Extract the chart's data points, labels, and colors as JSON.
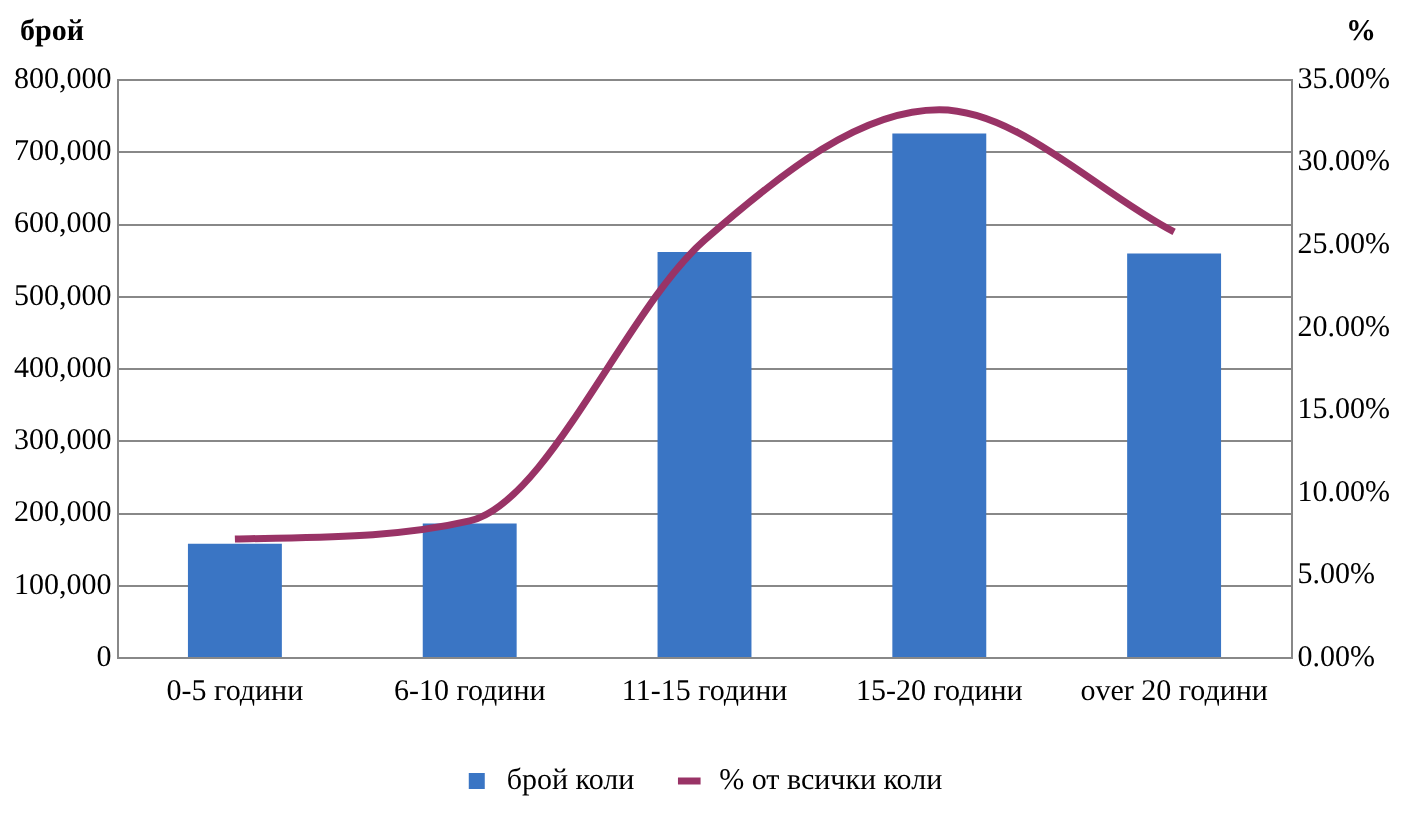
{
  "chart_data": {
    "type": "bar",
    "ylabel": "брой",
    "y2label": "%",
    "categories": [
      "0-5 години",
      "6-10 години",
      "11-15 години",
      "15-20 години",
      "over 20 години"
    ],
    "series": [
      {
        "name": "брой коли",
        "color": "#3a75c4",
        "values": [
          158000,
          186000,
          562000,
          726000,
          560000
        ]
      },
      {
        "name": "% от всички коли",
        "type": "line",
        "axis": "y2",
        "color": "#993366",
        "values": [
          7.2,
          8.3,
          25.3,
          33.2,
          25.8
        ]
      }
    ],
    "ylim": [
      0,
      800000
    ],
    "yticks": [
      0,
      {
        "value": 100000,
        "label": "100,000"
      },
      {
        "value": 200000,
        "label": "200,000"
      },
      {
        "value": 300000,
        "label": "300,000"
      },
      {
        "value": 400000,
        "label": "400,000"
      },
      {
        "value": 500000,
        "label": "500,000"
      },
      {
        "value": 600000,
        "label": "600,000"
      },
      {
        "value": 700000,
        "label": "700,000"
      },
      {
        "value": 800000,
        "label": "800,000"
      }
    ],
    "y2lim": [
      0,
      35
    ],
    "y2ticks": [
      {
        "value": 0,
        "label": "0.00%"
      },
      {
        "value": 5,
        "label": "5.00%"
      },
      {
        "value": 10,
        "label": "10.00%"
      },
      {
        "value": 15,
        "label": "15.00%"
      },
      {
        "value": 20,
        "label": "20.00%"
      },
      {
        "value": 25,
        "label": "25.00%"
      },
      {
        "value": 30,
        "label": "30.00%"
      },
      {
        "value": 35,
        "label": "35.00%"
      }
    ],
    "grid": "y",
    "legend": "bottom"
  }
}
